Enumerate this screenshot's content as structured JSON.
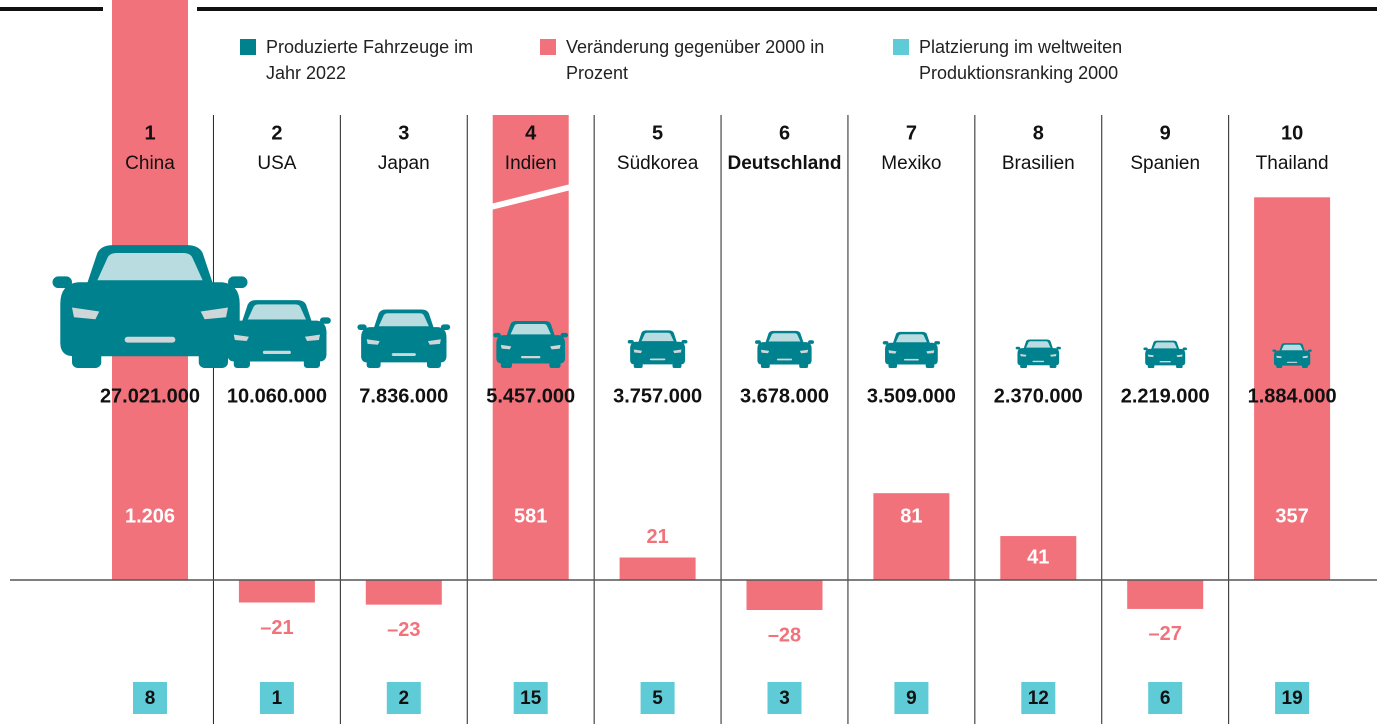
{
  "chart_data": {
    "type": "bar",
    "ranks": [
      1,
      2,
      3,
      4,
      5,
      6,
      7,
      8,
      9,
      10
    ],
    "categories": [
      "China",
      "USA",
      "Japan",
      "Indien",
      "Südkorea",
      "Deutschland",
      "Mexiko",
      "Brasilien",
      "Spanien",
      "Thailand"
    ],
    "series": [
      {
        "name": "Produzierte Fahrzeuge im Jahr 2022",
        "color": "#00818e",
        "values": [
          27021000,
          10060000,
          7836000,
          5457000,
          3757000,
          3678000,
          3509000,
          2370000,
          2219000,
          1884000
        ],
        "value_labels": [
          "27.021.000",
          "10.060.000",
          "7.836.000",
          "5.457.000",
          "3.757.000",
          "3.678.000",
          "3.509.000",
          "2.370.000",
          "2.219.000",
          "1.884.000"
        ]
      },
      {
        "name": "Veränderung gegenüber 2000 in Prozent",
        "color": "#f1727b",
        "values": [
          1206,
          -21,
          -23,
          581,
          21,
          -28,
          81,
          41,
          -27,
          357
        ],
        "value_labels": [
          "1.206",
          "–21",
          "–23",
          "581",
          "21",
          "–28",
          "81",
          "41",
          "–27",
          "357"
        ]
      },
      {
        "name": "Platzierung im weltweiten Produktionsranking 2000",
        "color": "#5ecbd6",
        "values": [
          8,
          1,
          2,
          15,
          5,
          3,
          9,
          12,
          6,
          19
        ]
      }
    ]
  }
}
